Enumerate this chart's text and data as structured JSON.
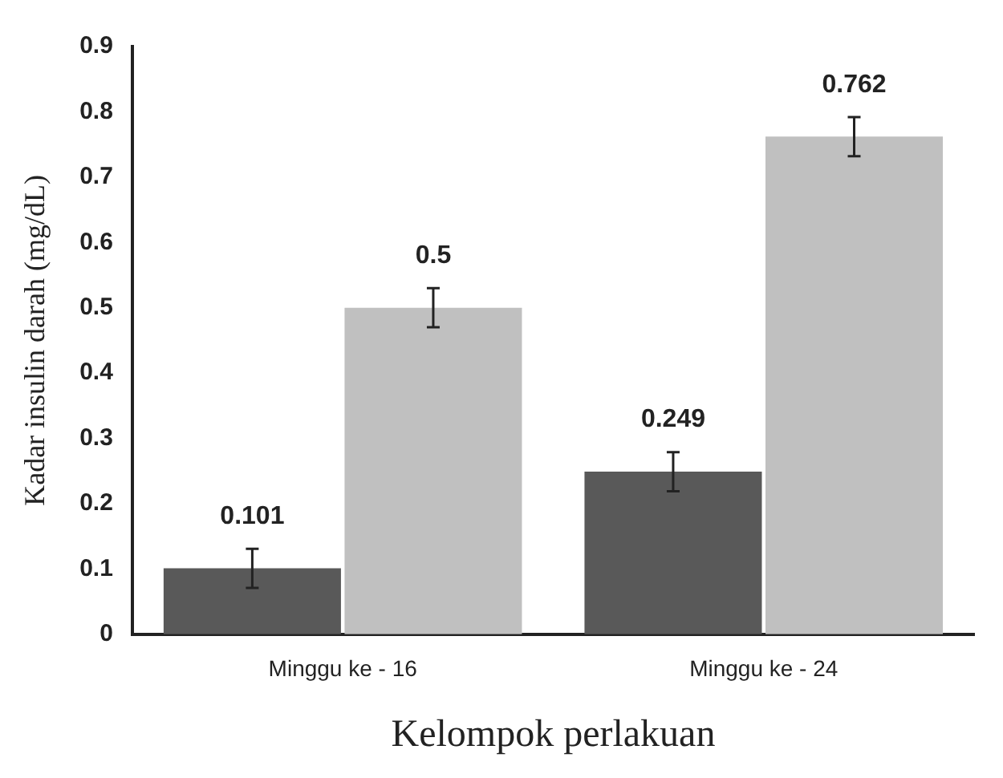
{
  "chart_data": {
    "type": "bar",
    "xlabel": "Kelompok perlakuan",
    "ylabel": "Kadar insulin darah (mg/dL)",
    "categories": [
      "Minggu ke - 16",
      "Minggu ke - 24"
    ],
    "series": [
      {
        "color": "#595959",
        "values": [
          0.101,
          0.249
        ],
        "errors": [
          0.03,
          0.03
        ]
      },
      {
        "color": "#c0c0c0",
        "values": [
          0.5,
          0.762
        ],
        "errors": [
          0.03,
          0.03
        ]
      }
    ],
    "ylim": [
      0,
      0.9
    ],
    "yticks": [
      0,
      0.1,
      0.2,
      0.3,
      0.4,
      0.5,
      0.6,
      0.7,
      0.8,
      0.9
    ],
    "grid": false,
    "legend": false,
    "data_labels": true
  }
}
